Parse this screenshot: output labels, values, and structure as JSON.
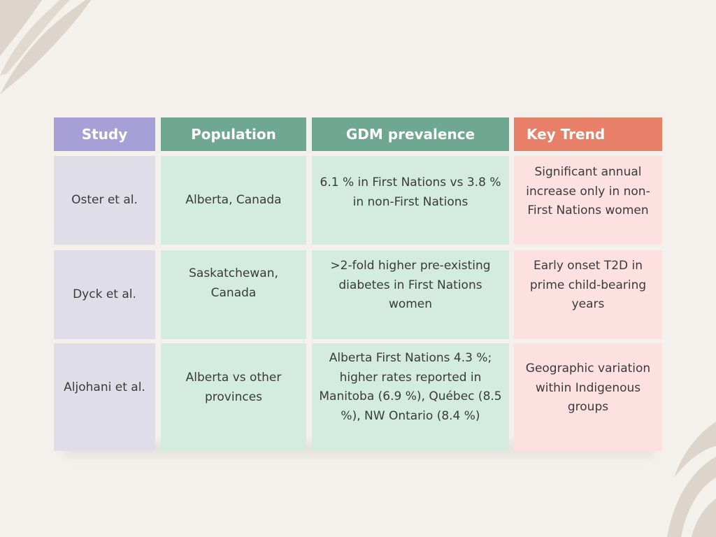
{
  "table": {
    "headers": [
      "Study",
      "Population",
      "GDM prevalence",
      "Key Trend"
    ],
    "rows": [
      {
        "study": "Oster et al.",
        "population": "Alberta, Canada",
        "gdm_prevalence": "6.1 % in First Nations vs 3.8 % in non-First Nations",
        "key_trend": "Significant annual increase only in non-First Nations women"
      },
      {
        "study": "Dyck et al.",
        "population": "Saskatchewan, Canada",
        "gdm_prevalence": ">2-fold higher pre-existing diabetes in First Nations women",
        "key_trend": "Early onset T2D in prime child-bearing years"
      },
      {
        "study": "Aljohani et al.",
        "population": "Alberta vs other provinces",
        "gdm_prevalence": "Alberta First Nations 4.3 %; higher rates reported in Manitoba (6.9 %), Québec (8.5 %), NW Ontario (8.4 %)",
        "key_trend": "Geographic variation within Indigenous groups"
      }
    ]
  },
  "colors": {
    "background": "#f4f1ec",
    "study_header": "#a7a0d6",
    "population_header": "#6ea893",
    "gdm_header": "#6ea893",
    "trend_header": "#e87f68",
    "study_body": "#dfdde8",
    "population_body": "#d3ebe1",
    "gdm_body": "#d3ebe1",
    "trend_body": "#fde0e0",
    "decoration": "#d9d0c6"
  }
}
